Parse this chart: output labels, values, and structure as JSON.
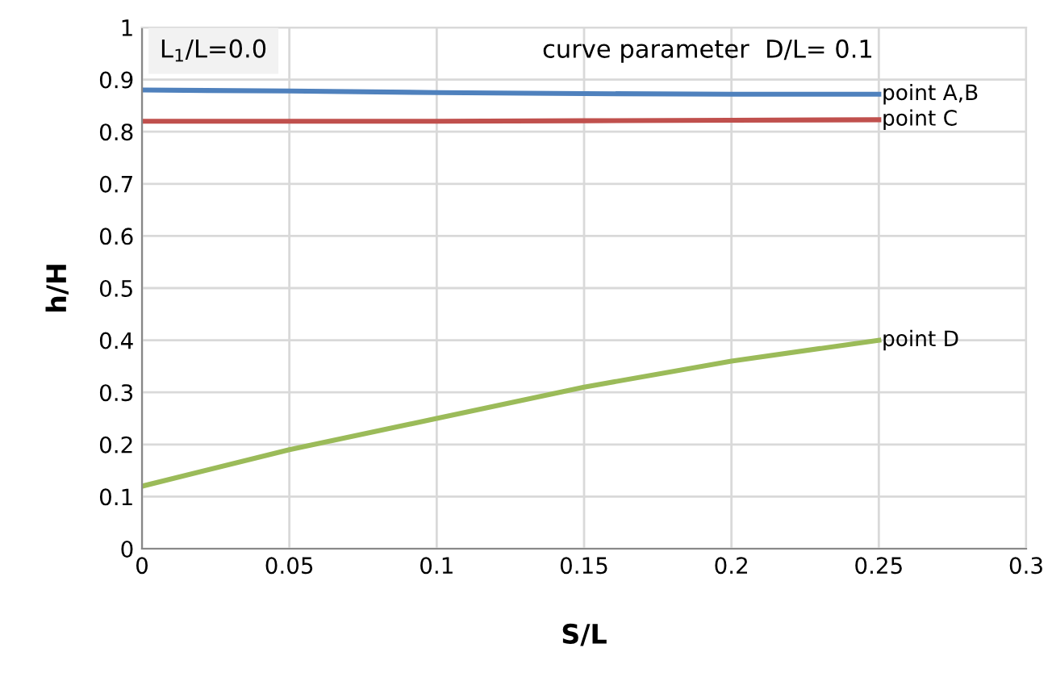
{
  "chart_data": {
    "type": "line",
    "xlabel": "S/L",
    "ylabel": "h/H",
    "x": [
      0,
      0.05,
      0.1,
      0.15,
      0.2,
      0.25
    ],
    "series": [
      {
        "name": "point A,B",
        "color": "#4f81bd",
        "values": [
          0.88,
          0.878,
          0.875,
          0.873,
          0.872,
          0.872
        ]
      },
      {
        "name": "point C",
        "color": "#c0504d",
        "values": [
          0.82,
          0.82,
          0.82,
          0.821,
          0.822,
          0.823
        ]
      },
      {
        "name": "point D",
        "color": "#9bbb59",
        "values": [
          0.12,
          0.19,
          0.25,
          0.31,
          0.36,
          0.4
        ]
      }
    ],
    "annotations": [
      "L$_{1}$/L=0.0",
      "curve parameter  D/L= 0.1"
    ],
    "xlim": [
      0,
      0.3
    ],
    "xticks": [
      0,
      0.05,
      0.1,
      0.15,
      0.2,
      0.25,
      0.3
    ],
    "ylim": [
      0,
      1
    ],
    "yticks": [
      0,
      0.1,
      0.2,
      0.3,
      0.4,
      0.5,
      0.6,
      0.7,
      0.8,
      0.9,
      1
    ],
    "grid": true,
    "legend": false,
    "marker": "none",
    "line_style": "solid"
  }
}
